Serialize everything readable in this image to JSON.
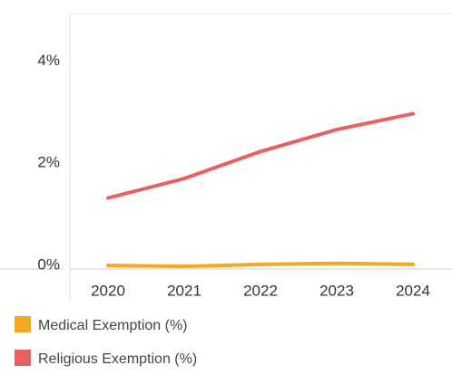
{
  "chart_data": {
    "type": "line",
    "categories": [
      "2020",
      "2021",
      "2022",
      "2023",
      "2024"
    ],
    "series": [
      {
        "name": "Medical Exemption (%)",
        "color": "#f5a623",
        "values": [
          0.07,
          0.05,
          0.09,
          0.11,
          0.09
        ]
      },
      {
        "name": "Religious Exemption (%)",
        "color": "#e8605f",
        "values": [
          1.39,
          1.77,
          2.3,
          2.73,
          3.04
        ]
      }
    ],
    "ylim": [
      0,
      5
    ],
    "yticks": [
      {
        "value": 0,
        "label": "0%"
      },
      {
        "value": 2,
        "label": "2%"
      },
      {
        "value": 4,
        "label": "4%"
      }
    ]
  }
}
